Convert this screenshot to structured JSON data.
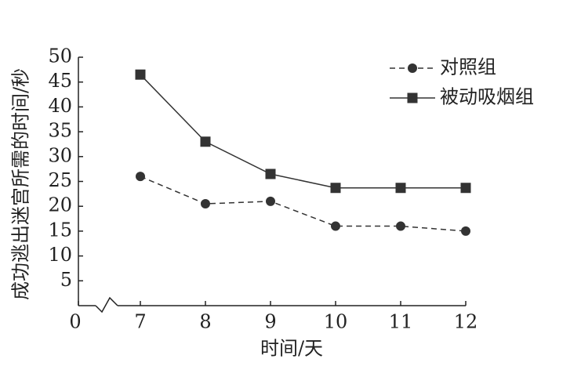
{
  "chart_data": {
    "type": "line",
    "x_label": "时间/天",
    "y_label": "成功逃出迷宫所需的时间/秒",
    "x": [
      7,
      8,
      9,
      10,
      11,
      12
    ],
    "xticks": [
      0,
      7,
      8,
      9,
      10,
      11,
      12
    ],
    "xlim": [
      0,
      12
    ],
    "axis_break": true,
    "ylim": [
      0,
      50
    ],
    "yticks": [
      5,
      10,
      15,
      20,
      25,
      30,
      35,
      40,
      45,
      50
    ],
    "grid": false,
    "legend": "top-right",
    "series": [
      {
        "name": "对照组",
        "color": "#333333",
        "marker": "circle",
        "dash": true,
        "values": [
          26,
          20.5,
          21,
          16,
          16,
          15
        ]
      },
      {
        "name": "被动吸烟组",
        "color": "#333333",
        "marker": "square",
        "dash": false,
        "values": [
          46.5,
          33,
          26.5,
          23.7,
          23.7,
          23.7
        ]
      }
    ]
  }
}
